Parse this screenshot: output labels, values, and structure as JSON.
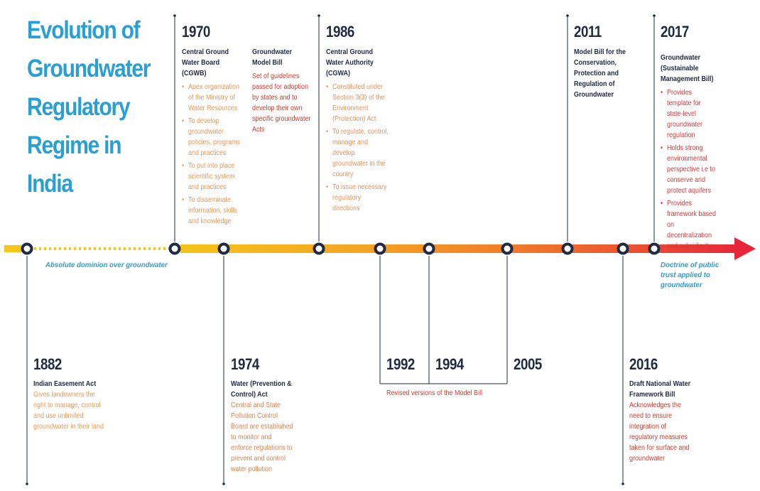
{
  "title": "Evolution of Groundwater Regulatory Regime in India",
  "captions": {
    "left": "Absolute dominion over groundwater",
    "right": "Doctrine of public trust applied to groundwater",
    "revised": "Revised versions of the Model Bill"
  },
  "events": {
    "e1882": {
      "year": "1882",
      "heading": "Indian Easement Act",
      "text": "Gives landowners the right to manage, control and use unlimited groundwater in their land"
    },
    "e1970": {
      "year": "1970",
      "heading": "Central Ground Water Board (CGWB)",
      "bullets": [
        "Apex organization of the Ministry of Water Resources",
        "To develop groundwater policies, programs and practices",
        "To put into place scientific system and practices",
        "To disseminate information, skills and knowledge"
      ]
    },
    "bill1970": {
      "heading": "Groundwater Model Bill",
      "text": "Set of guidelines passed for adoption by states and to develop their own specific groundwater Acts"
    },
    "e1974": {
      "year": "1974",
      "heading": "Water (Prevention & Control) Act",
      "text": "Central and State Pollution Control Board are established to monitor and enforce regulations to prevent and control water pollution"
    },
    "e1986": {
      "year": "1986",
      "heading": "Central Ground Water Authority (CGWA)",
      "bullets": [
        "Constituted under Section 3(3) of the Environment (Protection) Act",
        "To regulate, control, manage and develop groundwater in the country",
        "To issue necessary regulatory directions"
      ]
    },
    "e1992": {
      "year": "1992"
    },
    "e1994": {
      "year": "1994"
    },
    "e2005": {
      "year": "2005"
    },
    "e2011": {
      "year": "2011",
      "heading": "Model Bill for the Conservation, Protection and Regulation of Groundwater"
    },
    "e2016": {
      "year": "2016",
      "heading": "Draft National Water Framework Bill",
      "text": "Acknowledges the need to ensure integration of regulatory measures taken for surface and groundwater"
    },
    "e2017": {
      "year": "2017",
      "heading": "Groundwater (Sustainable Management Bill)",
      "bullets": [
        "Provides template for state-level groundwater regulation",
        "Holds strong environmental perspective i.e to conserve and protect aquifers",
        "Provides framework based on decentralization and subsidiarity"
      ]
    }
  },
  "colors": {
    "title": "#2a9fd3",
    "year": "#1f2a44",
    "gradient_start": "#f5c518",
    "gradient_end": "#e8263a"
  }
}
